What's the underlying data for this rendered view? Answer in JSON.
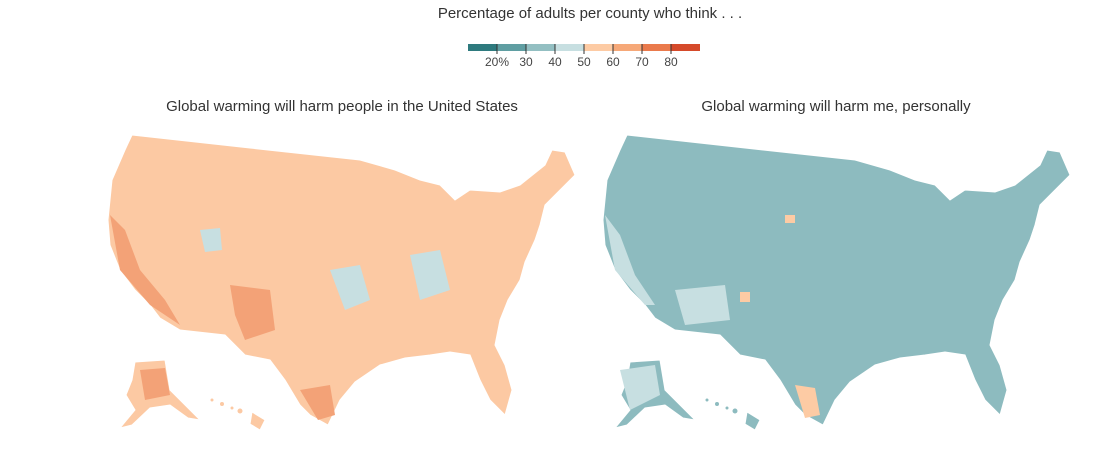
{
  "legend": {
    "title": "Percentage of adults per county who think . . .",
    "colors": [
      "#2e7a7e",
      "#5f9ea2",
      "#93bfc2",
      "#c7dfe1",
      "#fdcba4",
      "#f6a878",
      "#ea7a4c",
      "#d54a2a"
    ],
    "ticks": [
      {
        "value": 20,
        "label": "20%"
      },
      30,
      40,
      50,
      60,
      70,
      80
    ]
  },
  "maps": [
    {
      "title": "Global warming will harm people in the United States"
    },
    {
      "title": "Global warming will harm me, personally"
    }
  ]
}
